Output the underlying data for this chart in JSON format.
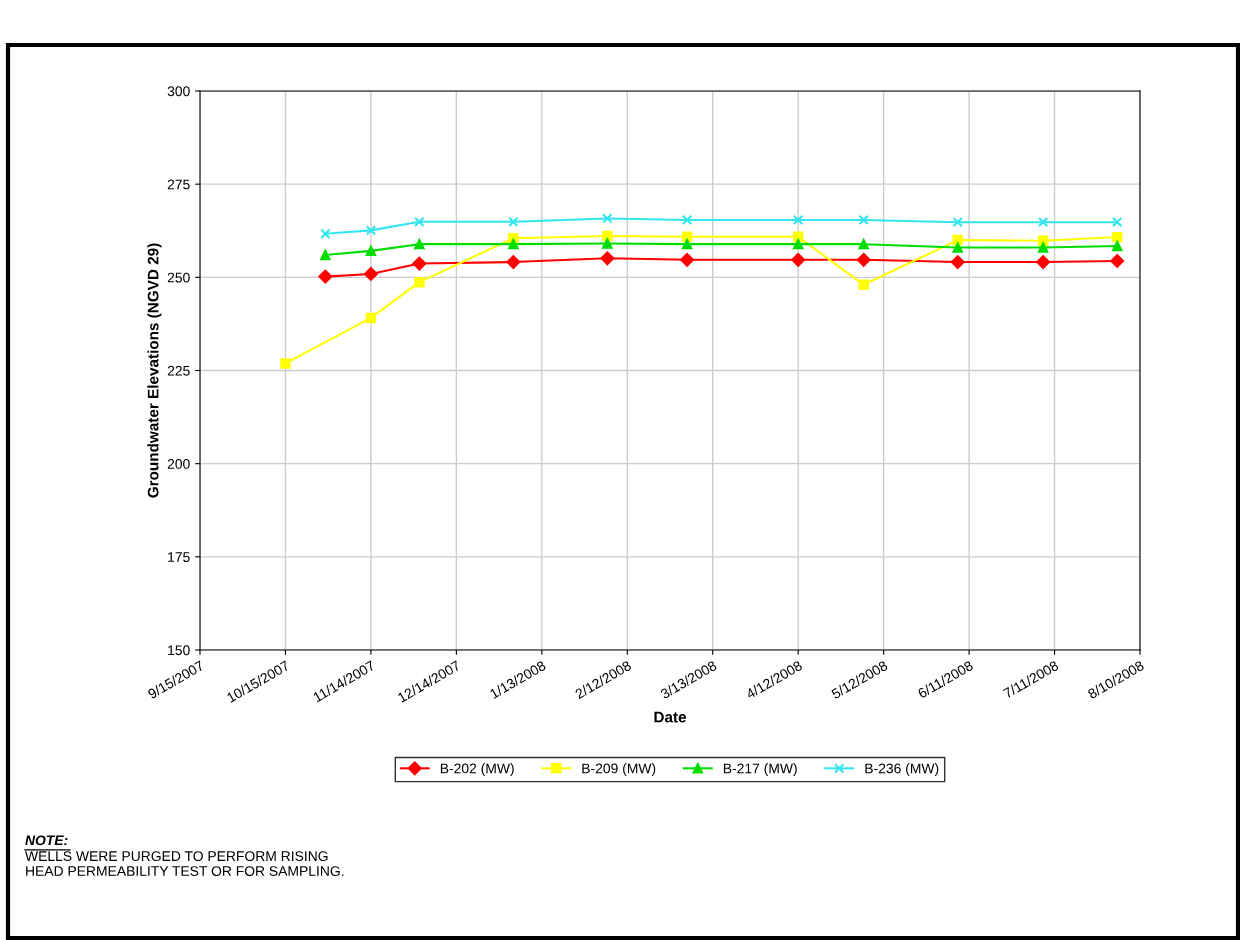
{
  "chart_data": {
    "type": "line",
    "xlabel": "Date",
    "ylabel": "Groundwater Elevations (NGVD 29)",
    "xlim": [
      "2007-09-15",
      "2008-08-10"
    ],
    "xticks": [
      {
        "value": "2007-09-15",
        "label": "9/15/2007"
      },
      {
        "value": "2007-10-15",
        "label": "10/15/2007"
      },
      {
        "value": "2007-11-14",
        "label": "11/14/2007"
      },
      {
        "value": "2007-12-14",
        "label": "12/14/2007"
      },
      {
        "value": "2008-01-13",
        "label": "1/13/2008"
      },
      {
        "value": "2008-02-12",
        "label": "2/12/2008"
      },
      {
        "value": "2008-03-13",
        "label": "3/13/2008"
      },
      {
        "value": "2008-04-12",
        "label": "4/12/2008"
      },
      {
        "value": "2008-05-12",
        "label": "5/12/2008"
      },
      {
        "value": "2008-06-11",
        "label": "6/11/2008"
      },
      {
        "value": "2008-07-11",
        "label": "7/11/2008"
      },
      {
        "value": "2008-08-10",
        "label": "8/10/2008"
      }
    ],
    "ylim": [
      150,
      300
    ],
    "yticks": [
      150,
      175,
      200,
      225,
      250,
      275,
      300
    ],
    "grid": true,
    "legend": "bottom",
    "series": [
      {
        "name": "B-202 (MW)",
        "color": "#ff0000",
        "marker": "diamond",
        "x": [
          "2007-10-29",
          "2007-11-14",
          "2007-12-01",
          "2008-01-03",
          "2008-02-05",
          "2008-03-04",
          "2008-04-12",
          "2008-05-05",
          "2008-06-07",
          "2008-07-07",
          "2008-08-02"
        ],
        "values": [
          250.2,
          250.9,
          253.7,
          254.1,
          255.1,
          254.7,
          254.7,
          254.7,
          254.1,
          254.1,
          254.4
        ]
      },
      {
        "name": "B-209 (MW)",
        "color": "#ffff00",
        "marker": "square",
        "x": [
          "2007-10-15",
          "2007-11-14",
          "2007-12-01",
          "2008-01-03",
          "2008-02-05",
          "2008-03-04",
          "2008-04-12",
          "2008-05-05",
          "2008-06-07",
          "2008-07-07",
          "2008-08-02"
        ],
        "values": [
          226.9,
          239.1,
          248.7,
          260.5,
          261.1,
          260.9,
          260.9,
          248.0,
          260.0,
          259.8,
          260.8
        ]
      },
      {
        "name": "B-217 (MW)",
        "color": "#00dd00",
        "marker": "triangle",
        "x": [
          "2007-10-29",
          "2007-11-14",
          "2007-12-01",
          "2008-01-03",
          "2008-02-05",
          "2008-03-04",
          "2008-04-12",
          "2008-05-05",
          "2008-06-07",
          "2008-07-07",
          "2008-08-02"
        ],
        "values": [
          256.0,
          257.1,
          258.9,
          258.9,
          259.1,
          258.9,
          258.9,
          258.9,
          258.0,
          258.0,
          258.4
        ]
      },
      {
        "name": "B-236 (MW)",
        "color": "#33e5f0",
        "marker": "cross",
        "x": [
          "2007-10-29",
          "2007-11-14",
          "2007-12-01",
          "2008-01-03",
          "2008-02-05",
          "2008-03-04",
          "2008-04-12",
          "2008-05-05",
          "2008-06-07",
          "2008-07-07",
          "2008-08-02"
        ],
        "values": [
          261.7,
          262.6,
          264.9,
          264.9,
          265.8,
          265.4,
          265.4,
          265.4,
          264.8,
          264.8,
          264.8
        ]
      }
    ],
    "annotations": [
      "NOTE:",
      "WELLS WERE PURGED TO PERFORM RISING\nHEAD PERMEABILITY TEST OR FOR SAMPLING."
    ]
  }
}
